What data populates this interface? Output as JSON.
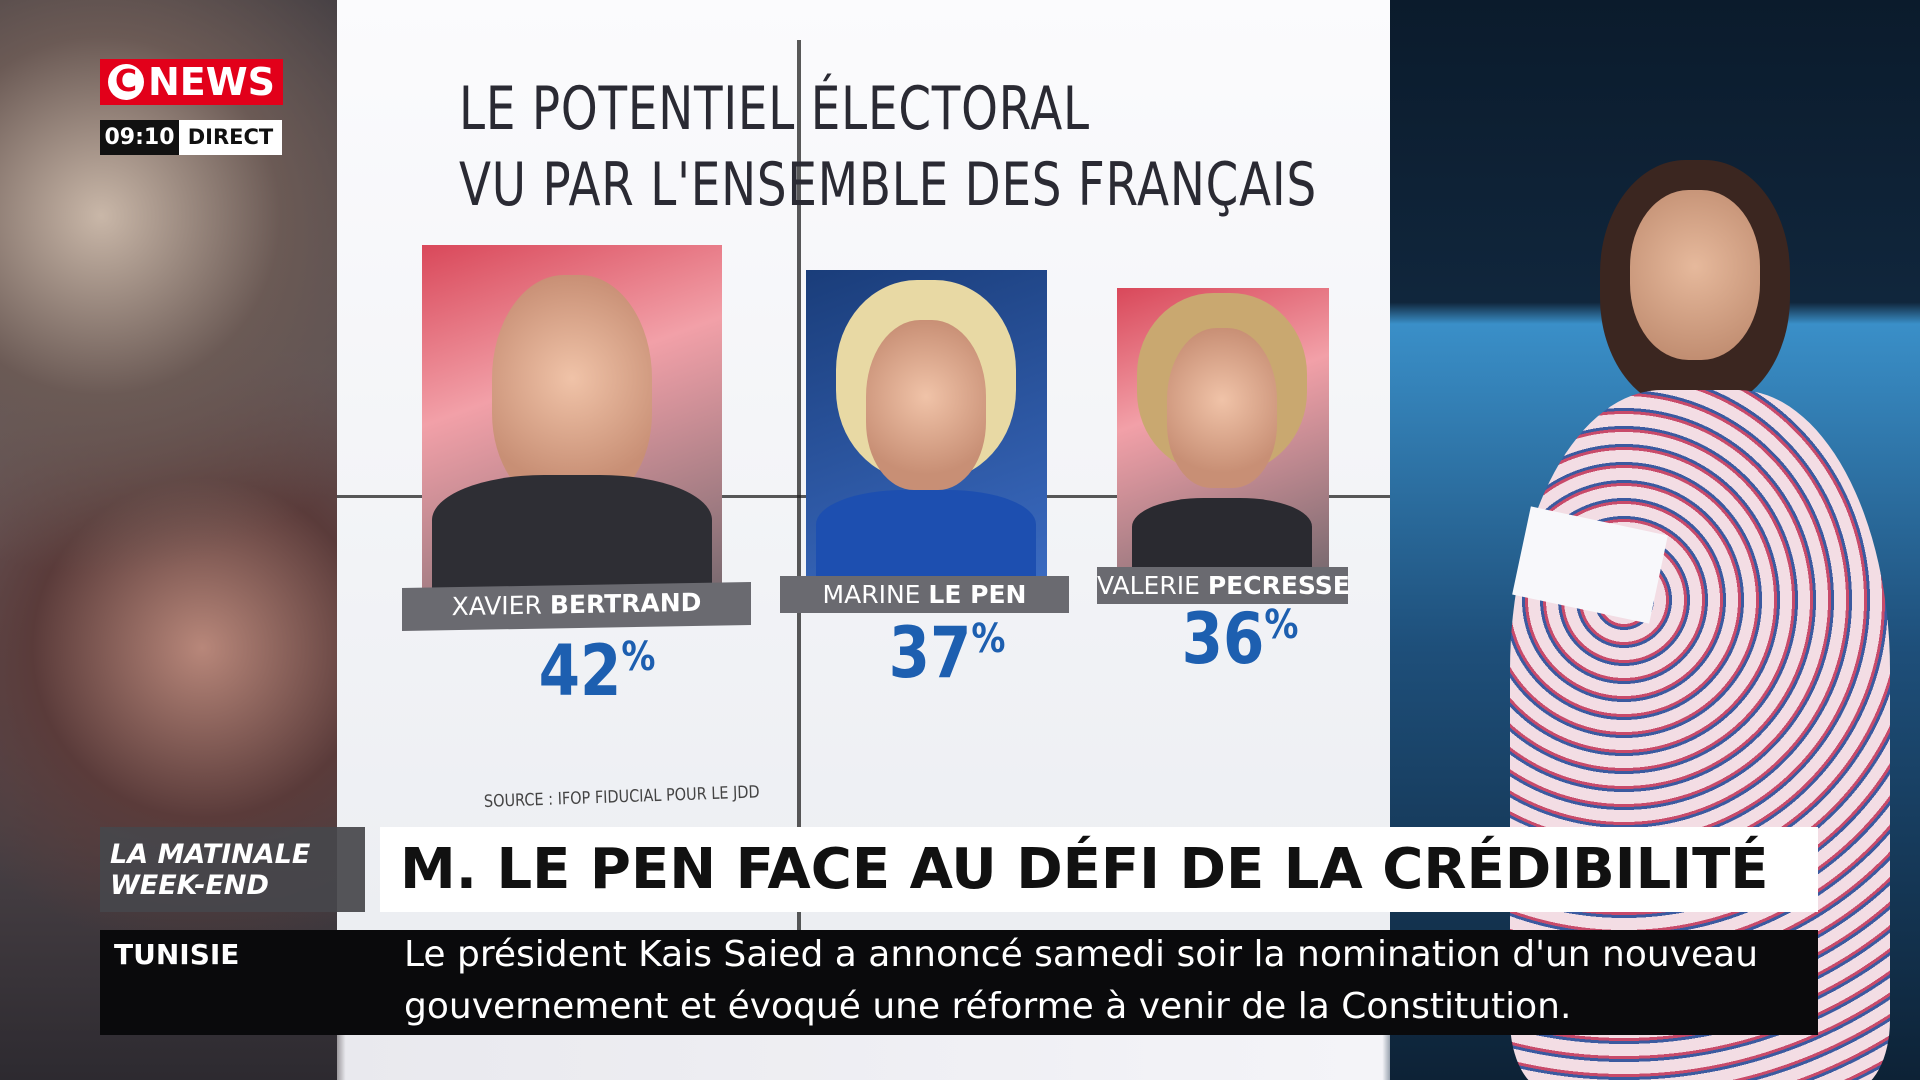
{
  "channel": {
    "logo_c": "C",
    "logo_news": "NEWS",
    "time": "09:10",
    "live": "DIRECT"
  },
  "board": {
    "title_line1": "LE POTENTIEL ÉLECTORAL",
    "title_line2": "VU PAR L'ENSEMBLE DES FRANÇAIS",
    "candidates": [
      {
        "first": "XAVIER",
        "last": "BERTRAND",
        "value": 42,
        "unit": "%"
      },
      {
        "first": "MARINE",
        "last": "LE PEN",
        "value": 37,
        "unit": "%"
      },
      {
        "first": "VALERIE",
        "last": "PECRESSE",
        "value": 36,
        "unit": "%"
      }
    ],
    "source": "SOURCE : IFOP FIDUCIAL POUR LE JDD"
  },
  "lower_third": {
    "show_line1": "LA MATINALE",
    "show_line2": "WEEK-END",
    "headline": "M. LE PEN FACE AU DÉFI DE LA CRÉDIBILITÉ"
  },
  "ticker": {
    "topic": "TUNISIE",
    "line1": "Le président Kais Saied a annoncé samedi soir la nomination d'un nouveau",
    "line2": "gouvernement et évoqué une réforme à venir de la Constitution."
  }
}
